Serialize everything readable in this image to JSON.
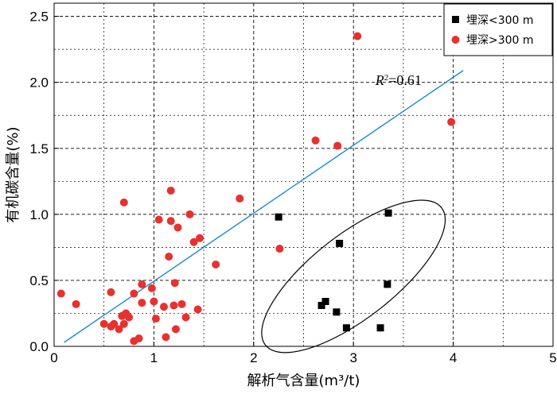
{
  "chart_data": {
    "type": "scatter",
    "xlabel": "解析气含量(m³/t)",
    "ylabel": "有机碳含量(%)",
    "xlim": [
      0,
      5
    ],
    "ylim": [
      0,
      2.6
    ],
    "x_ticks": [
      "0",
      "1",
      "2",
      "3",
      "4",
      "5"
    ],
    "y_ticks": [
      "0.0",
      "0.5",
      "1.0",
      "1.5",
      "2.0",
      "2.5"
    ],
    "grid": "dashed major and minor",
    "legend_position": "top-right",
    "series": [
      {
        "name": "埋深<300 m",
        "marker": "square",
        "color": "#000000",
        "points": [
          [
            2.25,
            0.98
          ],
          [
            2.86,
            0.78
          ],
          [
            3.35,
            1.01
          ],
          [
            3.34,
            0.47
          ],
          [
            2.72,
            0.34
          ],
          [
            2.68,
            0.31
          ],
          [
            2.83,
            0.26
          ],
          [
            2.93,
            0.14
          ],
          [
            3.27,
            0.14
          ]
        ]
      },
      {
        "name": "埋深>300 m",
        "marker": "circle",
        "color": "#e8312f",
        "points": [
          [
            0.07,
            0.4
          ],
          [
            0.22,
            0.32
          ],
          [
            0.5,
            0.17
          ],
          [
            0.57,
            0.41
          ],
          [
            0.57,
            0.15
          ],
          [
            0.6,
            0.17
          ],
          [
            0.65,
            0.13
          ],
          [
            0.68,
            0.23
          ],
          [
            0.7,
            0.17
          ],
          [
            0.72,
            0.25
          ],
          [
            0.75,
            0.22
          ],
          [
            0.8,
            0.04
          ],
          [
            0.85,
            0.06
          ],
          [
            0.7,
            1.09
          ],
          [
            0.8,
            0.4
          ],
          [
            0.88,
            0.47
          ],
          [
            0.88,
            0.33
          ],
          [
            0.98,
            0.44
          ],
          [
            1.0,
            0.34
          ],
          [
            1.02,
            0.21
          ],
          [
            1.05,
            0.96
          ],
          [
            1.1,
            0.3
          ],
          [
            1.12,
            0.07
          ],
          [
            1.15,
            0.68
          ],
          [
            1.17,
            1.18
          ],
          [
            1.17,
            0.95
          ],
          [
            1.2,
            0.31
          ],
          [
            1.21,
            0.48
          ],
          [
            1.22,
            0.13
          ],
          [
            1.24,
            0.9
          ],
          [
            1.28,
            0.32
          ],
          [
            1.32,
            0.22
          ],
          [
            1.36,
            1.0
          ],
          [
            1.4,
            0.79
          ],
          [
            1.44,
            0.28
          ],
          [
            1.46,
            0.82
          ],
          [
            1.62,
            0.62
          ],
          [
            1.86,
            1.12
          ],
          [
            2.26,
            0.74
          ],
          [
            2.62,
            1.56
          ],
          [
            2.84,
            1.52
          ],
          [
            3.04,
            2.35
          ],
          [
            3.98,
            1.7
          ]
        ]
      }
    ],
    "trendline": {
      "x": [
        0.1,
        4.1
      ],
      "y": [
        0.03,
        2.09
      ],
      "color": "#1f8ad0"
    },
    "annotation": {
      "text": "R²=0.61",
      "r_label": "R",
      "sup": "2",
      "rest": "=0.61",
      "x": 3.22,
      "y": 1.98
    },
    "ellipse": {
      "cx": 3.0,
      "cy": 0.53,
      "rx": 1.12,
      "ry": 0.42,
      "angle_deg": -38
    }
  }
}
